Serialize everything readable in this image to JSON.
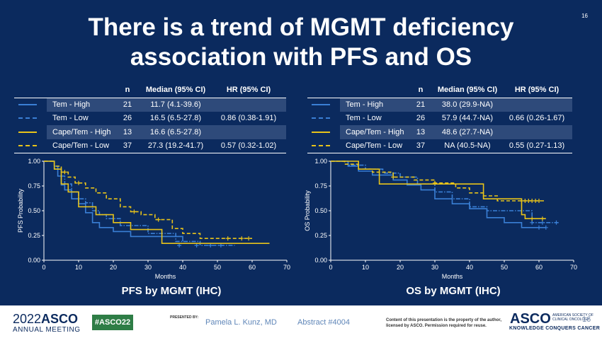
{
  "slide": {
    "title": "There is a trend of MGMT deficiency association with PFS and OS",
    "slide_number": "16"
  },
  "headers": {
    "n": "n",
    "median": "Median (95% CI)",
    "hr": "HR (95% CI)"
  },
  "pfs_table": [
    {
      "group": "Tem - High",
      "n": "21",
      "median": "11.7 (4.1-39.6)",
      "hr": ""
    },
    {
      "group": "Tem - Low",
      "n": "26",
      "median": "16.5 (6.5-27.8)",
      "hr": "0.86 (0.38-1.91)"
    },
    {
      "group": "Cape/Tem - High",
      "n": "13",
      "median": "16.6 (6.5-27.8)",
      "hr": ""
    },
    {
      "group": "Cape/Tem - Low",
      "n": "37",
      "median": "27.3 (19.2-41.7)",
      "hr": "0.57 (0.32-1.02)"
    }
  ],
  "os_table": [
    {
      "group": "Tem - High",
      "n": "21",
      "median": "38.0 (29.9-NA)",
      "hr": ""
    },
    {
      "group": "Tem - Low",
      "n": "26",
      "median": "57.9 (44.7-NA)",
      "hr": "0.66 (0.26-1.67)"
    },
    {
      "group": "Cape/Tem - High",
      "n": "13",
      "median": "48.6 (27.7-NA)",
      "hr": ""
    },
    {
      "group": "Cape/Tem - Low",
      "n": "37",
      "median": "NA (40.5-NA)",
      "hr": "0.55 (0.27-1.13)"
    }
  ],
  "colors": {
    "background": "#0b2a5e",
    "tem": "#3a7fd5",
    "cape": "#e8c31a",
    "text": "#ffffff",
    "shade": "#2e4a7a"
  },
  "pfs_plot": {
    "caption": "PFS by MGMT (IHC)"
  },
  "os_plot": {
    "caption": "OS by MGMT (IHC)"
  },
  "chart_data": [
    {
      "type": "line",
      "title": "PFS by MGMT (IHC)",
      "xlabel": "Months",
      "ylabel": "PFS Probability",
      "xlim": [
        0,
        70
      ],
      "ylim": [
        0,
        1
      ],
      "xticks": [
        "0",
        "10",
        "20",
        "30",
        "40",
        "50",
        "60",
        "70"
      ],
      "yticks": [
        "0.00",
        "0.25",
        "0.50",
        "0.75",
        "1.00"
      ],
      "series": [
        {
          "name": "Tem - High",
          "color": "#3a7fd5",
          "dash": "solid",
          "x": [
            0,
            3,
            4,
            5,
            6,
            8,
            10,
            12,
            14,
            16,
            20,
            25,
            40
          ],
          "y": [
            1.0,
            0.95,
            0.85,
            0.76,
            0.71,
            0.62,
            0.57,
            0.48,
            0.38,
            0.33,
            0.29,
            0.24,
            0.19
          ],
          "censor": []
        },
        {
          "name": "Tem - Low",
          "color": "#3a7fd5",
          "dash": "dashdot",
          "x": [
            0,
            3,
            5,
            6,
            8,
            10,
            12,
            14,
            16,
            18,
            22,
            30,
            38,
            45,
            55
          ],
          "y": [
            1.0,
            0.92,
            0.85,
            0.77,
            0.69,
            0.62,
            0.58,
            0.5,
            0.46,
            0.42,
            0.35,
            0.27,
            0.19,
            0.15,
            0.15
          ],
          "censor": [
            [
              39,
              0.15
            ],
            [
              44,
              0.15
            ],
            [
              48,
              0.15
            ],
            [
              51,
              0.15
            ]
          ]
        },
        {
          "name": "Cape/Tem - High",
          "color": "#e8c31a",
          "dash": "solid",
          "x": [
            0,
            3,
            5,
            7,
            10,
            15,
            20,
            25,
            34,
            40,
            65
          ],
          "y": [
            1.0,
            0.92,
            0.77,
            0.69,
            0.54,
            0.46,
            0.38,
            0.31,
            0.17,
            0.17,
            0.17
          ],
          "censor": []
        },
        {
          "name": "Cape/Tem - Low",
          "color": "#e8c31a",
          "dash": "dashed",
          "x": [
            0,
            3,
            5,
            7,
            9,
            12,
            15,
            18,
            22,
            25,
            28,
            32,
            37,
            40,
            45,
            50,
            60
          ],
          "y": [
            1.0,
            0.95,
            0.89,
            0.84,
            0.78,
            0.73,
            0.68,
            0.62,
            0.54,
            0.49,
            0.46,
            0.41,
            0.32,
            0.27,
            0.22,
            0.22,
            0.22
          ],
          "censor": [
            [
              6,
              0.89
            ],
            [
              10,
              0.78
            ],
            [
              26,
              0.49
            ],
            [
              33,
              0.41
            ],
            [
              53,
              0.22
            ],
            [
              57,
              0.22
            ],
            [
              59,
              0.22
            ]
          ]
        }
      ]
    },
    {
      "type": "line",
      "title": "OS by MGMT (IHC)",
      "xlabel": "Months",
      "ylabel": "OS Probability",
      "xlim": [
        0,
        70
      ],
      "ylim": [
        0,
        1
      ],
      "xticks": [
        "0",
        "10",
        "20",
        "30",
        "40",
        "50",
        "60",
        "70"
      ],
      "yticks": [
        "0.00",
        "0.25",
        "0.50",
        "0.75",
        "1.00"
      ],
      "series": [
        {
          "name": "Tem - High",
          "color": "#3a7fd5",
          "dash": "solid",
          "x": [
            0,
            5,
            8,
            12,
            18,
            22,
            26,
            30,
            35,
            40,
            45,
            50,
            55,
            62
          ],
          "y": [
            1.0,
            0.95,
            0.9,
            0.86,
            0.81,
            0.76,
            0.71,
            0.62,
            0.57,
            0.52,
            0.43,
            0.38,
            0.33,
            0.33
          ],
          "censor": [
            [
              60,
              0.33
            ],
            [
              62,
              0.33
            ]
          ]
        },
        {
          "name": "Tem - Low",
          "color": "#3a7fd5",
          "dash": "dashdot",
          "x": [
            0,
            5,
            10,
            15,
            20,
            25,
            30,
            35,
            40,
            45,
            50,
            58,
            66
          ],
          "y": [
            1.0,
            0.96,
            0.92,
            0.88,
            0.84,
            0.77,
            0.69,
            0.62,
            0.54,
            0.5,
            0.5,
            0.38,
            0.38
          ],
          "censor": [
            [
              58,
              0.38
            ],
            [
              61,
              0.38
            ],
            [
              65,
              0.38
            ]
          ]
        },
        {
          "name": "Cape/Tem - High",
          "color": "#e8c31a",
          "dash": "solid",
          "x": [
            0,
            8,
            14,
            44,
            55,
            56,
            62
          ],
          "y": [
            1.0,
            0.92,
            0.77,
            0.62,
            0.46,
            0.42,
            0.42
          ],
          "censor": [
            [
              58,
              0.42
            ],
            [
              61,
              0.42
            ]
          ]
        },
        {
          "name": "Cape/Tem - Low",
          "color": "#e8c31a",
          "dash": "dashed",
          "x": [
            0,
            4,
            8,
            12,
            18,
            24,
            30,
            36,
            40,
            44,
            48,
            62
          ],
          "y": [
            1.0,
            0.97,
            0.92,
            0.89,
            0.84,
            0.81,
            0.78,
            0.73,
            0.68,
            0.65,
            0.6,
            0.6
          ],
          "censor": [
            [
              18,
              0.84
            ],
            [
              30,
              0.78
            ],
            [
              55,
              0.6
            ],
            [
              56,
              0.6
            ],
            [
              57,
              0.6
            ],
            [
              58,
              0.6
            ],
            [
              59,
              0.6
            ],
            [
              60,
              0.6
            ]
          ]
        }
      ]
    }
  ],
  "footer": {
    "year": "2022",
    "org": "ASCO",
    "meeting": "ANNUAL MEETING",
    "hashtag": "#ASCO22",
    "presented_by": "PRESENTED BY:",
    "presenter": "Pamela L. Kunz, MD",
    "abstract": "Abstract #4004",
    "copyright": "Content of this presentation is the property of the author, licensed by ASCO. Permission required for reuse.",
    "brand": "ASCO",
    "brand_side": "AMERICAN SOCIETY OF CLINICAL ONCOLOGY",
    "tagline": "KNOWLEDGE CONQUERS CANCER",
    "page": "16"
  }
}
